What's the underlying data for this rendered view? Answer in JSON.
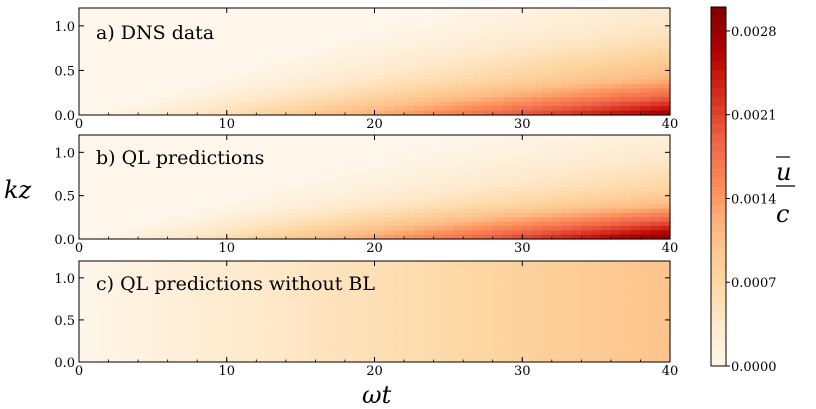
{
  "chart_data": {
    "type": "heatmap",
    "colormap": "OrRd",
    "colors": [
      "#fff7ec",
      "#fee8c8",
      "#fdd49e",
      "#fdbb84",
      "#fc8d59",
      "#ef6548",
      "#d7301f",
      "#b30000",
      "#7f0000"
    ],
    "ylabel": "kz",
    "xlabel": "ωt",
    "colorbar_label_num": "u",
    "colorbar_label_den": "c",
    "colorbar_ticks": [
      "0.0028",
      "0.0021",
      "0.0014",
      "0.0007",
      "0.0000"
    ],
    "colorbar_tick_values": [
      0.0028,
      0.0021,
      0.0014,
      0.0007,
      0.0
    ],
    "colorbar_range": [
      0.0,
      0.003
    ],
    "xlim": [
      0,
      40
    ],
    "ylim": [
      0,
      1.2
    ],
    "x_ticks": [
      "0",
      "10",
      "20",
      "30",
      "40"
    ],
    "y_ticks": [
      "0.0",
      "0.5",
      "1.0"
    ],
    "panels": [
      {
        "label": "a) DNS data",
        "max_value": 0.0028,
        "front_speed": 0.028,
        "row_kz": [
          0.0,
          0.2,
          0.4,
          0.6,
          0.8,
          1.0,
          1.2
        ],
        "row_values_at_wt40": [
          0.0028,
          0.0019,
          0.0012,
          0.0009,
          0.0006,
          0.0004,
          0.0003
        ]
      },
      {
        "label": "b) QL predictions",
        "max_value": 0.003,
        "front_speed": 0.028,
        "row_kz": [
          0.0,
          0.2,
          0.4,
          0.6,
          0.8,
          1.0,
          1.2
        ],
        "row_values_at_wt40": [
          0.003,
          0.002,
          0.0011,
          0.0007,
          0.0005,
          0.0003,
          0.0002
        ]
      },
      {
        "label": "c) QL predictions without BL",
        "max_value": 0.001,
        "front_speed": 0.0,
        "row_kz": [
          0.0,
          0.2,
          0.4,
          0.6,
          0.8,
          1.0,
          1.2
        ],
        "row_values_at_wt40": [
          0.001,
          0.001,
          0.001,
          0.001,
          0.001,
          0.001,
          0.001
        ]
      }
    ]
  }
}
